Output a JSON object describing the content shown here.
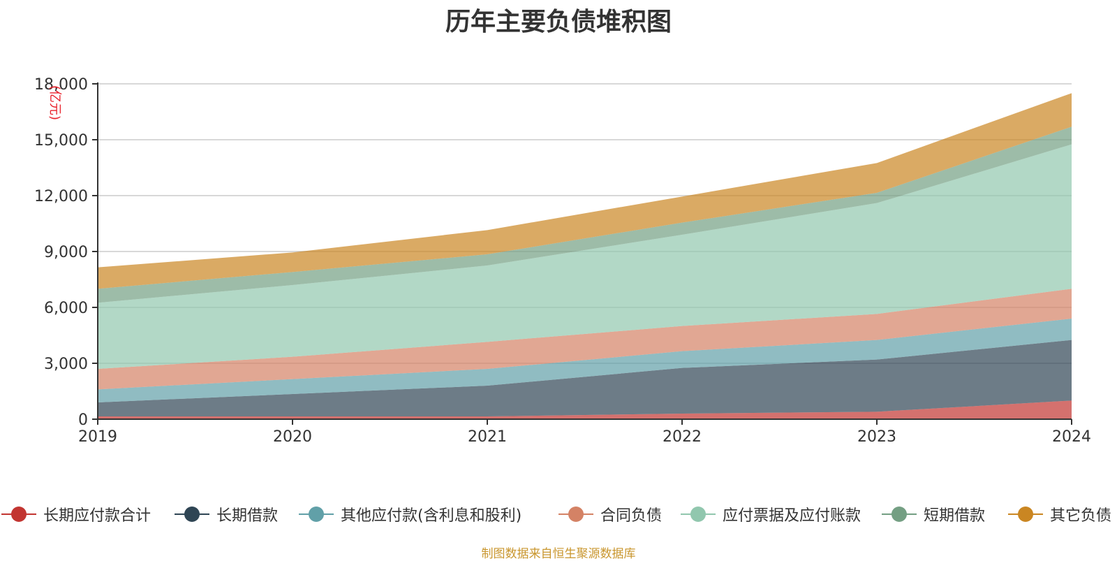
{
  "chart_data": {
    "type": "area",
    "stacked": true,
    "title": "历年主要负债堆积图",
    "unit_label": "(亿元)",
    "xlabel": "",
    "ylabel": "",
    "x": [
      "2019",
      "2020",
      "2021",
      "2022",
      "2023",
      "2024"
    ],
    "ylim": [
      0,
      18000
    ],
    "y_ticks": [
      "0",
      "3,000",
      "6,000",
      "9,000",
      "12,000",
      "15,000",
      "18,000"
    ],
    "y_tick_values": [
      0,
      3000,
      6000,
      9000,
      12000,
      15000,
      18000
    ],
    "grid": true,
    "legend_position": "bottom",
    "series": [
      {
        "name": "长期应付款合计",
        "color": "#c23531",
        "values": [
          150,
          150,
          150,
          300,
          400,
          1000
        ]
      },
      {
        "name": "长期借款",
        "color": "#2f4554",
        "values": [
          750,
          1200,
          1650,
          2450,
          2800,
          3250
        ]
      },
      {
        "name": "其他应付款(含利息和股利)",
        "color": "#61a0a8",
        "values": [
          700,
          800,
          900,
          900,
          1050,
          1150
        ]
      },
      {
        "name": "合同负债",
        "color": "#d48265",
        "values": [
          1100,
          1200,
          1450,
          1350,
          1400,
          1600
        ]
      },
      {
        "name": "应付票据及应付账款",
        "color": "#91c7ae",
        "values": [
          3550,
          3850,
          4100,
          4900,
          5950,
          7750
        ]
      },
      {
        "name": "短期借款",
        "color": "#749f83",
        "values": [
          750,
          700,
          600,
          650,
          550,
          950
        ]
      },
      {
        "name": "其它负债",
        "color": "#ca8622",
        "values": [
          1150,
          1050,
          1300,
          1400,
          1600,
          1800
        ]
      }
    ]
  },
  "source_note": "制图数据来自恒生聚源数据库"
}
